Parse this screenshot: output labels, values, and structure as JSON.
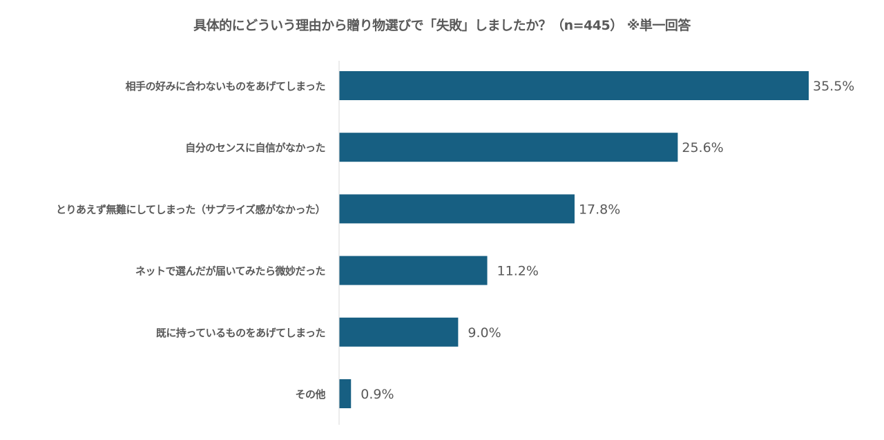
{
  "chart_data": {
    "type": "bar",
    "orientation": "horizontal",
    "title": "具体的にどういう理由から贈り物選びで「失敗」しましたか？（n=445） ※単一回答",
    "categories": [
      "相手の好みに合わないものをあげてしまった",
      "自分のセンスに自信がなかった",
      "とりあえず無難にしてしまった（サプライズ感がなかった）",
      "ネットで選んだが届いてみたら微妙だった",
      "既に持っているものをあげてしまった",
      "その他"
    ],
    "values": [
      35.5,
      25.6,
      17.8,
      11.2,
      9.0,
      0.9
    ],
    "value_labels": [
      "35.5%",
      "25.6%",
      "17.8%",
      "11.2%",
      "9.0%",
      "0.9%"
    ],
    "xlabel": "",
    "ylabel": "",
    "xlim": [
      0,
      35.5
    ],
    "grid": false,
    "bar_color": "#175F82"
  }
}
